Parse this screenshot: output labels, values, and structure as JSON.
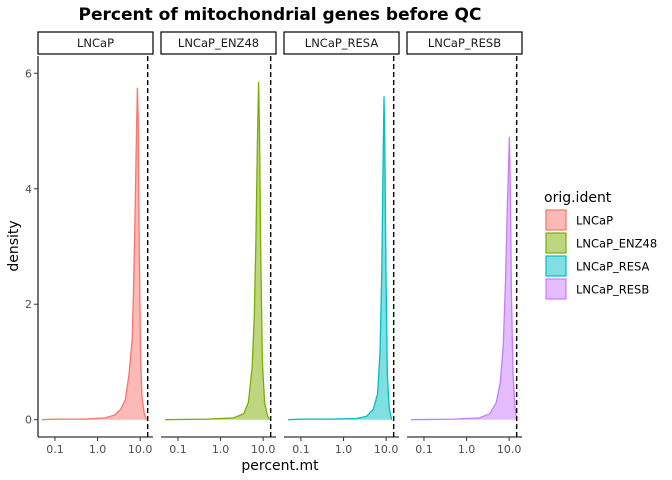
{
  "chart_data": {
    "type": "area",
    "title": "Percent of mitochondrial genes before QC",
    "xlabel": "percent.mt",
    "ylabel": "density",
    "x_scale": "log10",
    "xlim": [
      0.04,
      20
    ],
    "ylim": [
      -0.3,
      6.3
    ],
    "x_ticks": [
      0.1,
      1.0,
      10.0
    ],
    "x_tick_labels": [
      "0.1",
      "1.0",
      "10.0"
    ],
    "y_ticks": [
      0,
      2,
      4,
      6
    ],
    "y_tick_labels": [
      "0",
      "2",
      "4",
      "6"
    ],
    "threshold_line_x": 15,
    "grid": false,
    "legend": {
      "title": "orig.ident",
      "position": "right"
    },
    "panels": [
      {
        "name": "LNCaP",
        "color": "#F8766D",
        "points": [
          [
            0.05,
            0.0
          ],
          [
            0.1,
            0.01
          ],
          [
            0.5,
            0.01
          ],
          [
            1.5,
            0.03
          ],
          [
            2.5,
            0.08
          ],
          [
            3.5,
            0.18
          ],
          [
            4.5,
            0.35
          ],
          [
            5.5,
            0.8
          ],
          [
            6.5,
            1.4
          ],
          [
            7.0,
            2.3
          ],
          [
            7.6,
            3.6
          ],
          [
            8.1,
            4.8
          ],
          [
            8.6,
            5.75
          ],
          [
            9.0,
            5.2
          ],
          [
            9.5,
            3.0
          ],
          [
            10.2,
            1.2
          ],
          [
            11.0,
            0.4
          ],
          [
            12.5,
            0.1
          ],
          [
            14.0,
            0.0
          ]
        ]
      },
      {
        "name": "LNCaP_ENZ48",
        "color": "#7CAE00",
        "points": [
          [
            0.05,
            0.0
          ],
          [
            0.5,
            0.01
          ],
          [
            2.0,
            0.03
          ],
          [
            3.5,
            0.1
          ],
          [
            4.5,
            0.3
          ],
          [
            5.5,
            0.9
          ],
          [
            6.2,
            1.8
          ],
          [
            6.8,
            3.2
          ],
          [
            7.3,
            4.7
          ],
          [
            7.8,
            5.85
          ],
          [
            8.2,
            5.0
          ],
          [
            8.8,
            2.8
          ],
          [
            9.6,
            1.0
          ],
          [
            10.8,
            0.3
          ],
          [
            12.5,
            0.08
          ],
          [
            14.0,
            0.0
          ]
        ]
      },
      {
        "name": "LNCaP_RESA",
        "color": "#00BFC4",
        "points": [
          [
            0.05,
            0.0
          ],
          [
            0.1,
            0.01
          ],
          [
            0.5,
            0.01
          ],
          [
            2.0,
            0.02
          ],
          [
            3.5,
            0.06
          ],
          [
            5.0,
            0.18
          ],
          [
            6.3,
            0.45
          ],
          [
            7.2,
            1.2
          ],
          [
            7.9,
            2.6
          ],
          [
            8.4,
            4.2
          ],
          [
            8.9,
            5.6
          ],
          [
            9.3,
            4.8
          ],
          [
            9.9,
            2.5
          ],
          [
            10.6,
            0.8
          ],
          [
            11.8,
            0.2
          ],
          [
            13.5,
            0.0
          ]
        ]
      },
      {
        "name": "LNCaP_RESB",
        "color": "#C77CFF",
        "points": [
          [
            0.05,
            0.0
          ],
          [
            0.5,
            0.01
          ],
          [
            2.0,
            0.03
          ],
          [
            3.5,
            0.1
          ],
          [
            5.0,
            0.3
          ],
          [
            6.2,
            0.65
          ],
          [
            7.3,
            1.3
          ],
          [
            8.2,
            2.4
          ],
          [
            9.0,
            3.6
          ],
          [
            9.6,
            4.3
          ],
          [
            10.1,
            4.9
          ],
          [
            10.6,
            4.0
          ],
          [
            11.3,
            2.2
          ],
          [
            12.3,
            0.8
          ],
          [
            13.8,
            0.2
          ],
          [
            15.0,
            0.0
          ]
        ]
      }
    ]
  }
}
